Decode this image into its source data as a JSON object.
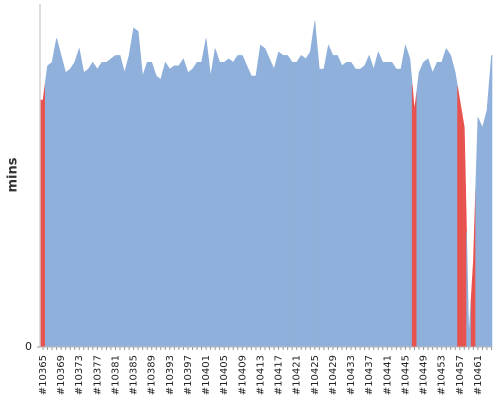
{
  "chart_data": {
    "type": "area",
    "y_label": "mins",
    "categories": [
      "#10365",
      null,
      null,
      null,
      "#10369",
      null,
      null,
      null,
      "#10373",
      null,
      null,
      null,
      "#10377",
      null,
      null,
      null,
      "#10381",
      null,
      null,
      null,
      "#10385",
      null,
      null,
      null,
      "#10389",
      null,
      null,
      null,
      "#10393",
      null,
      null,
      null,
      "#10397",
      null,
      null,
      null,
      "#10401",
      null,
      null,
      null,
      "#10405",
      null,
      null,
      null,
      "#10409",
      null,
      null,
      null,
      "#10413",
      null,
      null,
      null,
      "#10417",
      null,
      null,
      null,
      "#10421",
      null,
      null,
      null,
      "#10425",
      null,
      null,
      null,
      "#10429",
      null,
      null,
      null,
      "#10433",
      null,
      null,
      null,
      "#10437",
      null,
      null,
      null,
      "#10441",
      null,
      null,
      null,
      "#10445",
      null,
      null,
      null,
      "#10449",
      null,
      null,
      null,
      "#10453",
      null,
      null,
      null,
      "#10457",
      null,
      null,
      null,
      "#10461",
      null,
      null,
      null
    ],
    "values": [
      72,
      82,
      83,
      90,
      85,
      80,
      81,
      83,
      87,
      80,
      81,
      83,
      81,
      83,
      83,
      84,
      85,
      85,
      80,
      85,
      93,
      92,
      79,
      83,
      83,
      79,
      78,
      83,
      81,
      82,
      82,
      84,
      80,
      81,
      83,
      83,
      90,
      79,
      87,
      83,
      83,
      84,
      83,
      85,
      85,
      82,
      79,
      79,
      88,
      87,
      84,
      81,
      86,
      85,
      85,
      83,
      83,
      85,
      84,
      86,
      95,
      81,
      81,
      88,
      85,
      85,
      82,
      83,
      83,
      81,
      81,
      82,
      85,
      81,
      86,
      83,
      83,
      83,
      81,
      81,
      88,
      84,
      69,
      80,
      83,
      84,
      80,
      83,
      83,
      87,
      85,
      80,
      72,
      64,
      3,
      25,
      67,
      64,
      69,
      85
    ],
    "point_colors": [
      "#e8524f",
      "#8fb0da",
      "#8fb0da",
      "#8fb0da",
      "#8fb0da",
      "#8fb0da",
      "#8fb0da",
      "#8fb0da",
      "#8fb0da",
      "#8fb0da",
      "#8fb0da",
      "#8fb0da",
      "#8fb0da",
      "#8fb0da",
      "#8fb0da",
      "#8fb0da",
      "#8fb0da",
      "#8fb0da",
      "#8fb0da",
      "#8fb0da",
      "#8fb0da",
      "#8fb0da",
      "#8fb0da",
      "#8fb0da",
      "#8fb0da",
      "#8fb0da",
      "#8fb0da",
      "#8fb0da",
      "#8fb0da",
      "#8fb0da",
      "#8fb0da",
      "#8fb0da",
      "#8fb0da",
      "#8fb0da",
      "#8fb0da",
      "#8fb0da",
      "#8fb0da",
      "#8fb0da",
      "#8fb0da",
      "#8fb0da",
      "#8fb0da",
      "#8fb0da",
      "#8fb0da",
      "#8fb0da",
      "#8fb0da",
      "#8fb0da",
      "#8fb0da",
      "#8fb0da",
      "#8fb0da",
      "#8fb0da",
      "#8fb0da",
      "#8fb0da",
      "#8fb0da",
      "#8fb0da",
      "#8fb0da",
      "#8fb0da",
      "#8fb0da",
      "#8fb0da",
      "#8fb0da",
      "#8fb0da",
      "#8fb0da",
      "#8fb0da",
      "#8fb0da",
      "#8fb0da",
      "#8fb0da",
      "#8fb0da",
      "#8fb0da",
      "#8fb0da",
      "#8fb0da",
      "#8fb0da",
      "#8fb0da",
      "#8fb0da",
      "#8fb0da",
      "#8fb0da",
      "#8fb0da",
      "#8fb0da",
      "#8fb0da",
      "#8fb0da",
      "#8fb0da",
      "#8fb0da",
      "#8fb0da",
      "#8fb0da",
      "#e8524f",
      "#8fb0da",
      "#8fb0da",
      "#8fb0da",
      "#8fb0da",
      "#8fb0da",
      "#8fb0da",
      "#8fb0da",
      "#8fb0da",
      "#8fb0da",
      "#e8524f",
      "#e8524f",
      "#8fb0da",
      "#e8524f",
      "#8fb0da",
      "#8fb0da",
      "#8fb0da",
      "#8fb0da"
    ],
    "ylim": [
      0,
      100
    ],
    "yticks": [
      0
    ]
  }
}
